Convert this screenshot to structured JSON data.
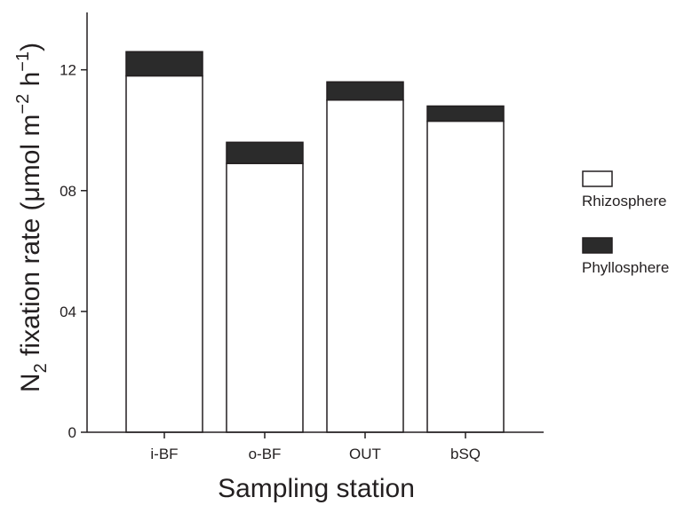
{
  "chart_data": {
    "type": "bar",
    "stacked": true,
    "categories": [
      "i-BF",
      "o-BF",
      "OUT",
      "bSQ"
    ],
    "series": [
      {
        "name": "Rhizosphere",
        "values": [
          11.8,
          8.9,
          11.0,
          10.3
        ],
        "color": "#ffffff"
      },
      {
        "name": "Phyllosphere",
        "values": [
          0.8,
          0.7,
          0.6,
          0.5
        ],
        "color": "#2b2b2b"
      }
    ],
    "xlabel": "Sampling station",
    "ylabel": {
      "prefix": "N",
      "prefix_sub": "2",
      "text1": " fixation rate (μmol m",
      "sup1": "−2",
      "text2": " h",
      "sup2": "−1",
      "text3": ")"
    },
    "ylim": [
      0,
      13.9
    ],
    "yticks": [
      {
        "value": 0,
        "label": "0"
      },
      {
        "value": 4,
        "label": "04"
      },
      {
        "value": 8,
        "label": "08"
      },
      {
        "value": 12,
        "label": "12"
      }
    ],
    "grid": false,
    "legend_position": "right"
  },
  "colors": {
    "axis": "#231f20",
    "bar_stroke": "#231f20"
  }
}
